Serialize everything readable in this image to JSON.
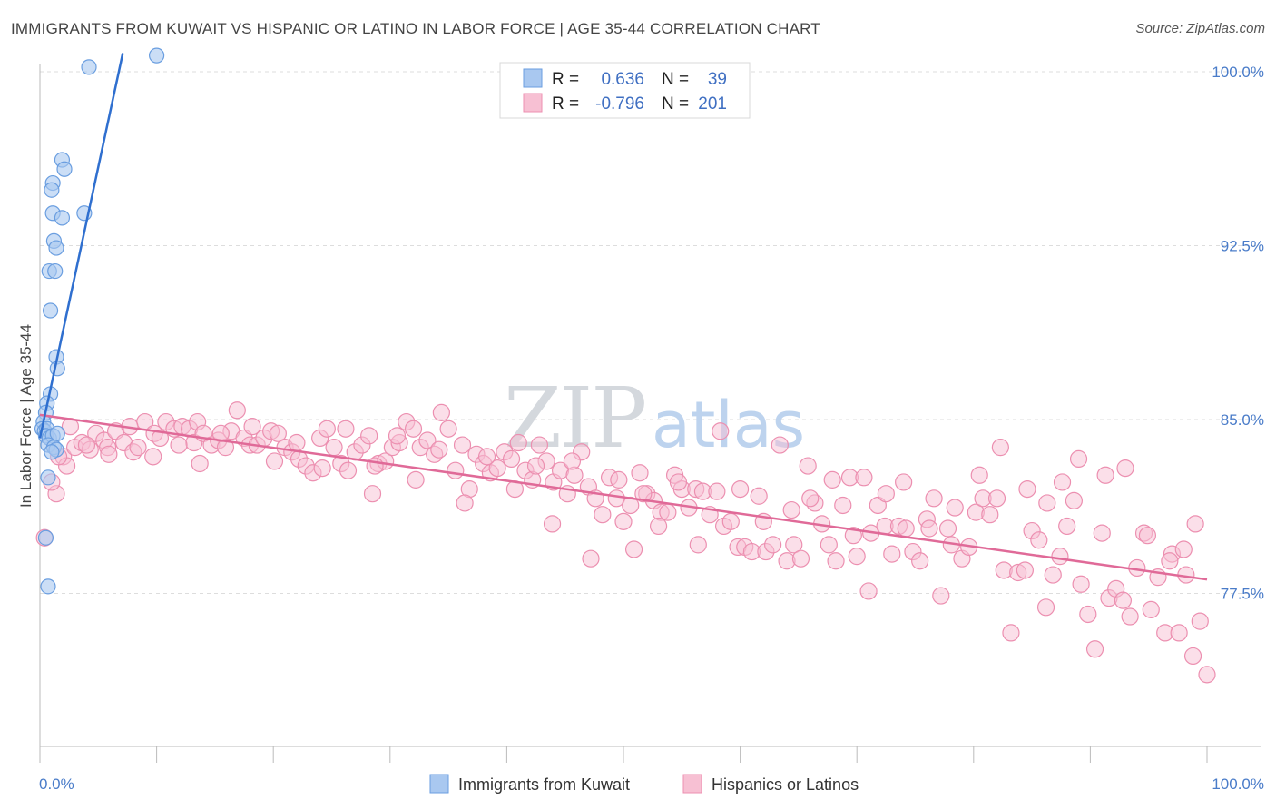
{
  "title": "IMMIGRANTS FROM KUWAIT VS HISPANIC OR LATINO IN LABOR FORCE | AGE 35-44 CORRELATION CHART",
  "source": "Source: ZipAtlas.com",
  "watermark": {
    "zip": "ZIP",
    "atlas": "atlas"
  },
  "legend": {
    "r_label": "R =",
    "n_label": "N =",
    "series": [
      {
        "r": "0.636",
        "n": "39"
      },
      {
        "r": "-0.796",
        "n": "201"
      }
    ]
  },
  "bottom_legend": [
    "Immigrants from Kuwait",
    "Hispanics or Latinos"
  ],
  "colors": {
    "blue_fill": "#a9c8f0",
    "blue_stroke": "#6a9ee0",
    "blue_line": "#2f6fcf",
    "pink_fill": "#f7c0d3",
    "pink_stroke": "#ec8fb0",
    "pink_line": "#e06a98",
    "tick": "#4a7cc9",
    "grid": "#dddddd"
  },
  "chart_data": {
    "type": "scatter",
    "title": "IMMIGRANTS FROM KUWAIT VS HISPANIC OR LATINO IN LABOR FORCE | AGE 35-44 CORRELATION CHART",
    "xlabel": "",
    "ylabel": "In Labor Force | Age 35-44",
    "xlim": [
      0,
      100
    ],
    "ylim": [
      71.5,
      101
    ],
    "x_tick_labels": [
      "0.0%",
      "100.0%"
    ],
    "y_ticks": [
      77.5,
      85.0,
      92.5,
      100.0
    ],
    "y_tick_labels": [
      "77.5%",
      "85.0%",
      "92.5%",
      "100.0%"
    ],
    "grid": true,
    "legend_position": "top-center",
    "series": [
      {
        "name": "Immigrants from Kuwait",
        "r": 0.636,
        "n": 39,
        "trend": {
          "x": [
            0.0,
            7.1
          ],
          "y": [
            84.2,
            100.8
          ]
        },
        "points": [
          [
            10.0,
            100.7
          ],
          [
            4.2,
            100.2
          ],
          [
            1.9,
            96.2
          ],
          [
            2.1,
            95.8
          ],
          [
            1.1,
            95.2
          ],
          [
            1.0,
            94.9
          ],
          [
            1.1,
            93.9
          ],
          [
            3.8,
            93.9
          ],
          [
            1.9,
            93.7
          ],
          [
            1.2,
            92.7
          ],
          [
            1.4,
            92.4
          ],
          [
            0.8,
            91.4
          ],
          [
            1.3,
            91.4
          ],
          [
            0.9,
            89.7
          ],
          [
            1.4,
            87.7
          ],
          [
            1.5,
            87.2
          ],
          [
            0.9,
            86.1
          ],
          [
            0.6,
            85.7
          ],
          [
            0.5,
            85.3
          ],
          [
            0.3,
            84.9
          ],
          [
            0.2,
            84.6
          ],
          [
            0.4,
            84.5
          ],
          [
            0.6,
            84.6
          ],
          [
            0.5,
            84.3
          ],
          [
            0.8,
            84.2
          ],
          [
            1.1,
            84.3
          ],
          [
            1.5,
            84.4
          ],
          [
            0.7,
            83.9
          ],
          [
            1.2,
            83.8
          ],
          [
            1.4,
            83.7
          ],
          [
            1.0,
            83.6
          ],
          [
            0.7,
            82.5
          ],
          [
            0.5,
            79.9
          ],
          [
            0.7,
            77.8
          ]
        ]
      },
      {
        "name": "Hispanics or Latinos",
        "r": -0.796,
        "n": 201,
        "trend": {
          "x": [
            0.0,
            100.0
          ],
          "y": [
            85.2,
            78.1
          ]
        },
        "points": [
          [
            0.4,
            79.9
          ],
          [
            1.4,
            81.8
          ],
          [
            2.0,
            83.4
          ],
          [
            2.3,
            83.0
          ],
          [
            3.0,
            83.8
          ],
          [
            3.6,
            84.0
          ],
          [
            4.3,
            83.7
          ],
          [
            4.8,
            84.4
          ],
          [
            5.5,
            84.1
          ],
          [
            5.8,
            83.8
          ],
          [
            6.5,
            84.5
          ],
          [
            7.2,
            84.0
          ],
          [
            8.0,
            83.6
          ],
          [
            8.4,
            83.8
          ],
          [
            9.0,
            84.9
          ],
          [
            9.8,
            84.4
          ],
          [
            10.3,
            84.2
          ],
          [
            10.8,
            84.9
          ],
          [
            11.5,
            84.6
          ],
          [
            12.2,
            84.7
          ],
          [
            12.8,
            84.6
          ],
          [
            13.2,
            84.0
          ],
          [
            13.5,
            84.9
          ],
          [
            14.0,
            84.4
          ],
          [
            14.7,
            83.9
          ],
          [
            15.3,
            84.1
          ],
          [
            15.9,
            83.8
          ],
          [
            16.4,
            84.5
          ],
          [
            16.9,
            85.4
          ],
          [
            17.5,
            84.2
          ],
          [
            18.0,
            83.9
          ],
          [
            18.6,
            83.9
          ],
          [
            19.2,
            84.2
          ],
          [
            19.8,
            84.5
          ],
          [
            20.4,
            84.4
          ],
          [
            21.0,
            83.8
          ],
          [
            21.6,
            83.6
          ],
          [
            22.2,
            83.3
          ],
          [
            22.8,
            83.0
          ],
          [
            23.4,
            82.7
          ],
          [
            24.0,
            84.2
          ],
          [
            24.6,
            84.6
          ],
          [
            25.2,
            83.8
          ],
          [
            25.8,
            83.1
          ],
          [
            26.4,
            82.8
          ],
          [
            27.0,
            83.6
          ],
          [
            27.6,
            83.9
          ],
          [
            28.2,
            84.3
          ],
          [
            28.5,
            81.8
          ],
          [
            29.0,
            83.1
          ],
          [
            29.6,
            83.2
          ],
          [
            30.2,
            83.8
          ],
          [
            30.8,
            84.0
          ],
          [
            31.4,
            84.9
          ],
          [
            32.0,
            84.6
          ],
          [
            32.6,
            83.8
          ],
          [
            33.2,
            84.1
          ],
          [
            33.8,
            83.5
          ],
          [
            34.4,
            85.3
          ],
          [
            35.0,
            84.6
          ],
          [
            35.6,
            82.8
          ],
          [
            36.2,
            83.9
          ],
          [
            36.8,
            82.0
          ],
          [
            37.4,
            83.5
          ],
          [
            38.0,
            83.1
          ],
          [
            38.6,
            82.7
          ],
          [
            39.2,
            82.9
          ],
          [
            39.8,
            83.6
          ],
          [
            40.4,
            83.3
          ],
          [
            41.0,
            84.0
          ],
          [
            41.6,
            82.8
          ],
          [
            42.2,
            82.4
          ],
          [
            42.8,
            83.9
          ],
          [
            43.4,
            83.2
          ],
          [
            44.0,
            82.3
          ],
          [
            44.6,
            82.8
          ],
          [
            45.2,
            81.8
          ],
          [
            45.8,
            82.6
          ],
          [
            46.4,
            83.6
          ],
          [
            47.0,
            82.1
          ],
          [
            47.6,
            81.6
          ],
          [
            48.2,
            80.9
          ],
          [
            48.8,
            82.5
          ],
          [
            49.4,
            81.6
          ],
          [
            50.0,
            80.6
          ],
          [
            50.6,
            81.3
          ],
          [
            50.9,
            79.4
          ],
          [
            51.4,
            82.7
          ],
          [
            52.0,
            81.8
          ],
          [
            52.6,
            81.5
          ],
          [
            53.2,
            81.0
          ],
          [
            53.8,
            81.0
          ],
          [
            54.4,
            82.6
          ],
          [
            55.0,
            82.0
          ],
          [
            55.6,
            81.2
          ],
          [
            56.2,
            82.0
          ],
          [
            56.8,
            81.9
          ],
          [
            57.4,
            80.9
          ],
          [
            58.0,
            81.9
          ],
          [
            58.6,
            80.4
          ],
          [
            59.2,
            80.6
          ],
          [
            59.8,
            79.5
          ],
          [
            60.4,
            79.5
          ],
          [
            61.0,
            79.3
          ],
          [
            61.6,
            81.7
          ],
          [
            62.2,
            79.3
          ],
          [
            62.8,
            79.6
          ],
          [
            63.4,
            83.9
          ],
          [
            64.0,
            78.9
          ],
          [
            64.6,
            79.6
          ],
          [
            65.2,
            79.0
          ],
          [
            65.8,
            83.0
          ],
          [
            66.4,
            81.4
          ],
          [
            67.0,
            80.5
          ],
          [
            67.6,
            79.6
          ],
          [
            68.2,
            78.9
          ],
          [
            68.8,
            81.3
          ],
          [
            69.4,
            82.5
          ],
          [
            70.0,
            79.1
          ],
          [
            70.6,
            82.5
          ],
          [
            71.2,
            80.1
          ],
          [
            71.8,
            81.3
          ],
          [
            72.4,
            80.4
          ],
          [
            73.0,
            79.2
          ],
          [
            73.6,
            80.4
          ],
          [
            74.2,
            80.3
          ],
          [
            74.8,
            79.3
          ],
          [
            75.4,
            78.9
          ],
          [
            76.0,
            80.7
          ],
          [
            76.6,
            81.6
          ],
          [
            77.2,
            77.4
          ],
          [
            77.8,
            80.3
          ],
          [
            78.4,
            81.2
          ],
          [
            79.0,
            79.0
          ],
          [
            79.6,
            79.5
          ],
          [
            80.2,
            81.0
          ],
          [
            80.8,
            81.6
          ],
          [
            81.4,
            80.9
          ],
          [
            82.0,
            81.6
          ],
          [
            82.6,
            78.5
          ],
          [
            83.2,
            75.8
          ],
          [
            83.8,
            78.4
          ],
          [
            84.4,
            78.5
          ],
          [
            85.0,
            80.2
          ],
          [
            85.6,
            79.8
          ],
          [
            86.2,
            76.9
          ],
          [
            86.8,
            78.3
          ],
          [
            87.4,
            79.1
          ],
          [
            88.0,
            80.4
          ],
          [
            88.6,
            81.5
          ],
          [
            89.2,
            77.9
          ],
          [
            89.8,
            76.6
          ],
          [
            90.4,
            75.1
          ],
          [
            91.0,
            80.1
          ],
          [
            91.6,
            77.3
          ],
          [
            92.2,
            77.7
          ],
          [
            92.8,
            77.2
          ],
          [
            93.4,
            76.5
          ],
          [
            94.0,
            78.6
          ],
          [
            94.6,
            80.1
          ],
          [
            95.2,
            76.8
          ],
          [
            95.8,
            78.2
          ],
          [
            96.4,
            75.8
          ],
          [
            97.0,
            79.2
          ],
          [
            97.6,
            75.8
          ],
          [
            98.2,
            78.3
          ],
          [
            98.8,
            74.8
          ],
          [
            99.4,
            76.3
          ],
          [
            100.0,
            74.0
          ],
          [
            99.0,
            80.5
          ],
          [
            98.0,
            79.4
          ],
          [
            96.8,
            78.9
          ],
          [
            94.9,
            80.0
          ],
          [
            93.0,
            82.9
          ],
          [
            91.3,
            82.6
          ],
          [
            89.0,
            83.3
          ],
          [
            87.6,
            82.3
          ],
          [
            86.3,
            81.4
          ],
          [
            84.6,
            82.0
          ],
          [
            82.3,
            83.8
          ],
          [
            80.5,
            82.6
          ],
          [
            78.1,
            79.6
          ],
          [
            76.2,
            80.3
          ],
          [
            74.0,
            82.3
          ],
          [
            72.5,
            81.8
          ],
          [
            71.0,
            77.6
          ],
          [
            69.7,
            80.0
          ],
          [
            67.9,
            82.4
          ],
          [
            66.0,
            81.6
          ],
          [
            64.4,
            81.1
          ],
          [
            62.0,
            80.6
          ],
          [
            60.0,
            82.0
          ],
          [
            58.3,
            84.5
          ],
          [
            56.4,
            79.6
          ],
          [
            54.7,
            82.3
          ],
          [
            53.0,
            80.4
          ],
          [
            51.7,
            81.8
          ],
          [
            49.6,
            82.4
          ],
          [
            47.2,
            79.0
          ],
          [
            45.6,
            83.2
          ],
          [
            43.9,
            80.5
          ],
          [
            42.5,
            83.0
          ],
          [
            40.7,
            82.0
          ],
          [
            38.3,
            83.4
          ],
          [
            36.4,
            81.4
          ],
          [
            34.2,
            83.7
          ],
          [
            32.2,
            82.4
          ],
          [
            30.6,
            84.3
          ],
          [
            28.7,
            83.0
          ],
          [
            26.2,
            84.6
          ],
          [
            24.2,
            82.9
          ],
          [
            22.0,
            84.0
          ],
          [
            20.1,
            83.2
          ],
          [
            18.2,
            84.7
          ],
          [
            15.5,
            84.4
          ],
          [
            13.7,
            83.1
          ],
          [
            11.9,
            83.9
          ],
          [
            9.7,
            83.4
          ],
          [
            7.7,
            84.7
          ],
          [
            5.9,
            83.5
          ],
          [
            4.0,
            83.9
          ],
          [
            2.6,
            84.7
          ],
          [
            1.6,
            83.4
          ],
          [
            1.0,
            82.3
          ]
        ]
      }
    ]
  }
}
